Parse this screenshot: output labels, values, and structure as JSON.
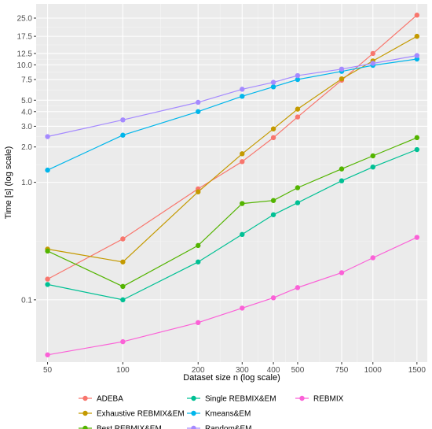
{
  "chart_data": {
    "type": "line",
    "xlabel": "Dataset size n (log scale)",
    "ylabel": "Time [s] (log scale)",
    "x_scale": "log",
    "y_scale": "log",
    "xlim": [
      45,
      1650
    ],
    "ylim": [
      0.0295,
      33
    ],
    "x_ticks": [
      50,
      100,
      200,
      300,
      400,
      500,
      750,
      1000,
      1500
    ],
    "x_tick_labels": [
      "50",
      "100",
      "200",
      "300",
      "400",
      "500",
      "750",
      "1000",
      "1500"
    ],
    "y_ticks": [
      0.1,
      1.0,
      2.0,
      3.0,
      4.0,
      5.0,
      7.5,
      10.0,
      12.5,
      17.5,
      25.0
    ],
    "y_tick_labels": [
      "0.1",
      "1.0",
      "2.0",
      "3.0",
      "4.0",
      "5.0",
      "7.5",
      "10.0",
      "12.5",
      "17.5",
      "25.0"
    ],
    "grid": true,
    "background_color": "#ebebeb",
    "legend_position": "bottom",
    "x": [
      50,
      100,
      200,
      300,
      400,
      500,
      750,
      1000,
      1500
    ],
    "series": [
      {
        "name": "ADEBA",
        "color": "#F8766D",
        "values": [
          0.15,
          0.33,
          0.88,
          1.5,
          2.4,
          3.6,
          7.4,
          12.5,
          26.5
        ]
      },
      {
        "name": "Exhaustive REBMIX&EM",
        "color": "#C49A00",
        "values": [
          0.27,
          0.21,
          0.83,
          1.75,
          2.85,
          4.2,
          7.6,
          10.8,
          17.5
        ]
      },
      {
        "name": "Best REBMIX&EM",
        "color": "#53B400",
        "values": [
          0.26,
          0.13,
          0.29,
          0.66,
          0.7,
          0.9,
          1.3,
          1.68,
          2.4
        ]
      },
      {
        "name": "Single REBMIX&EM",
        "color": "#00C094",
        "values": [
          0.135,
          0.1,
          0.21,
          0.36,
          0.53,
          0.67,
          1.03,
          1.35,
          1.9
        ]
      },
      {
        "name": "Kmeans&EM",
        "color": "#00B6EB",
        "values": [
          1.27,
          2.52,
          4.0,
          5.4,
          6.5,
          7.5,
          8.8,
          9.9,
          11.2
        ]
      },
      {
        "name": "Random&EM",
        "color": "#A58AFF",
        "values": [
          2.45,
          3.4,
          4.8,
          6.2,
          7.1,
          8.1,
          9.2,
          10.3,
          12.0
        ]
      },
      {
        "name": "REBMIX",
        "color": "#FB61D7",
        "values": [
          0.034,
          0.044,
          0.064,
          0.085,
          0.104,
          0.127,
          0.17,
          0.228,
          0.34
        ]
      }
    ]
  }
}
